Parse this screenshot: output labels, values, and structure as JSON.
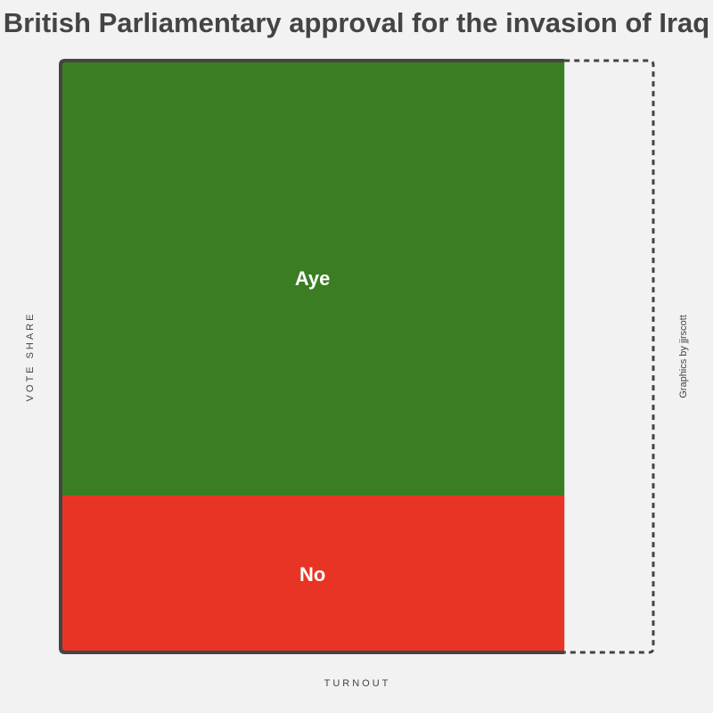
{
  "chart_data": {
    "type": "mosaic",
    "title": "British Parliamentary approval for the invasion of Iraq",
    "xlabel": "TURNOUT",
    "ylabel": "VOTE SHARE",
    "credit": "Graphics by jjrscott",
    "turnout": 0.85,
    "segments": [
      {
        "label": "Aye",
        "share": 0.735,
        "color": "#3a7d23"
      },
      {
        "label": "No",
        "share": 0.265,
        "color": "#e83424"
      }
    ],
    "frame_color": "#444444"
  }
}
